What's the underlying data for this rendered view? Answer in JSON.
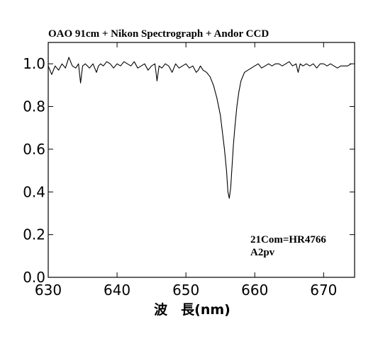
{
  "chart_data": {
    "type": "line",
    "title": "OAO 91cm + Nikon Spectrograph + Andor CCD",
    "xlabel": "波　長(nm)",
    "ylabel": "",
    "xlim": [
      630,
      674.5
    ],
    "ylim": [
      0.0,
      1.1
    ],
    "xticks": [
      630,
      640,
      650,
      660,
      670
    ],
    "xtick_labels": [
      "630",
      "640",
      "650",
      "660",
      "670"
    ],
    "yticks": [
      0.0,
      0.2,
      0.4,
      0.6,
      0.8,
      1.0
    ],
    "ytick_labels": [
      "0.0",
      "0.2",
      "0.4",
      "0.6",
      "0.8",
      "1.0"
    ],
    "grid": false,
    "annotations": [
      "21Com=HR4766",
      "A2pv"
    ],
    "series": [
      {
        "color": "#000000",
        "x": [
          630.0,
          630.5,
          631.0,
          631.5,
          632.0,
          632.5,
          633.0,
          633.5,
          634.0,
          634.4,
          634.7,
          635.0,
          635.4,
          636.0,
          636.5,
          637.0,
          637.3,
          637.6,
          638.0,
          638.5,
          639.0,
          639.5,
          640.0,
          640.5,
          641.0,
          641.5,
          642.0,
          642.5,
          643.0,
          643.5,
          644.0,
          644.5,
          645.0,
          645.5,
          645.8,
          646.1,
          646.5,
          647.0,
          647.5,
          648.0,
          648.5,
          649.0,
          649.5,
          650.0,
          650.5,
          651.0,
          651.5,
          651.8,
          652.1,
          652.5,
          653.0,
          653.5,
          654.0,
          654.5,
          655.0,
          655.3,
          655.6,
          655.9,
          656.1,
          656.3,
          656.5,
          656.7,
          656.9,
          657.1,
          657.4,
          657.7,
          658.0,
          658.5,
          659.0,
          659.5,
          660.0,
          660.5,
          661.0,
          661.5,
          662.0,
          662.5,
          663.0,
          663.5,
          664.0,
          664.5,
          665.0,
          665.5,
          666.0,
          666.3,
          666.6,
          667.0,
          667.5,
          668.0,
          668.5,
          669.0,
          669.5,
          670.0,
          670.5,
          671.0,
          671.5,
          672.0,
          672.5,
          673.0,
          673.5,
          674.0
        ],
        "y": [
          0.99,
          0.95,
          0.99,
          0.97,
          1.0,
          0.98,
          1.03,
          0.99,
          0.98,
          1.0,
          0.91,
          0.99,
          1.0,
          0.98,
          1.0,
          0.96,
          0.99,
          1.0,
          0.99,
          1.01,
          1.0,
          0.98,
          1.0,
          0.99,
          1.01,
          1.0,
          0.99,
          1.01,
          0.98,
          0.99,
          1.0,
          0.97,
          0.99,
          1.0,
          0.92,
          0.99,
          0.98,
          1.0,
          0.99,
          0.96,
          1.0,
          0.98,
          0.99,
          1.0,
          0.98,
          0.99,
          0.96,
          0.97,
          0.99,
          0.97,
          0.96,
          0.94,
          0.9,
          0.84,
          0.76,
          0.68,
          0.6,
          0.5,
          0.4,
          0.37,
          0.42,
          0.52,
          0.62,
          0.7,
          0.8,
          0.87,
          0.92,
          0.96,
          0.97,
          0.98,
          0.99,
          1.0,
          0.98,
          0.99,
          1.0,
          0.99,
          1.0,
          1.0,
          0.99,
          1.0,
          1.01,
          0.99,
          1.0,
          0.96,
          1.0,
          0.99,
          1.0,
          0.99,
          1.0,
          0.98,
          1.0,
          1.0,
          0.99,
          1.0,
          0.99,
          0.98,
          0.99,
          0.99,
          0.99,
          1.0
        ]
      }
    ]
  }
}
